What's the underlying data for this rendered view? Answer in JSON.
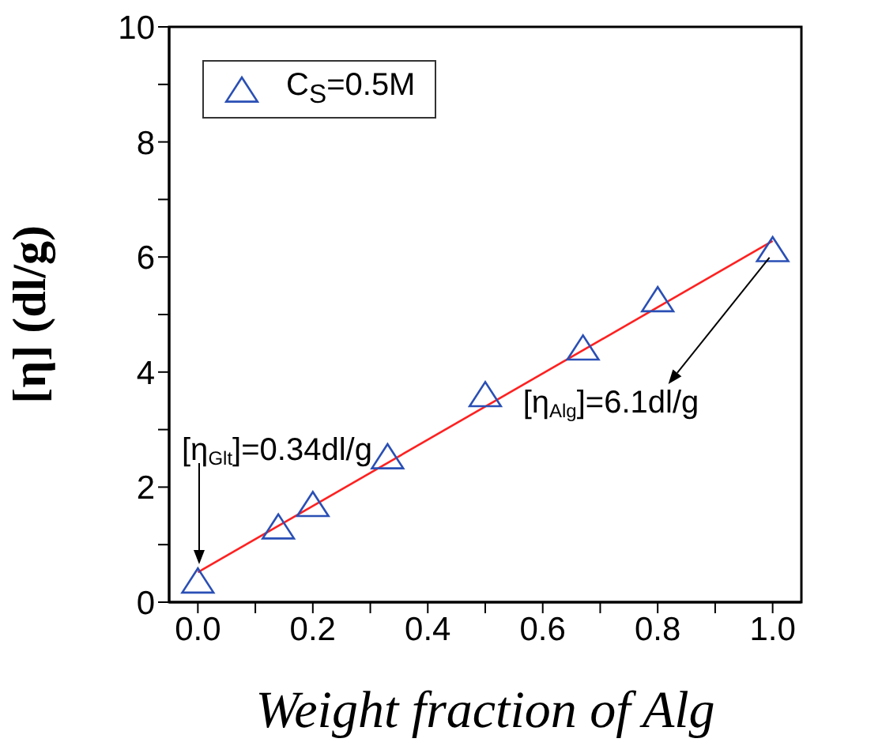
{
  "chart_data": {
    "type": "scatter",
    "xlabel": "Weight fraction of Alg",
    "ylabel": "[η]  (dl/g)",
    "xlim": [
      -0.05,
      1.05
    ],
    "xticks": [
      {
        "value": 0,
        "label": "0.0"
      },
      {
        "value": 0.1,
        "label": null
      },
      {
        "value": 0.2,
        "label": "0.2"
      },
      {
        "value": 0.3,
        "label": null
      },
      {
        "value": 0.4,
        "label": "0.4"
      },
      {
        "value": 0.5,
        "label": null
      },
      {
        "value": 0.6,
        "label": "0.6"
      },
      {
        "value": 0.7,
        "label": null
      },
      {
        "value": 0.8,
        "label": "0.8"
      },
      {
        "value": 0.9,
        "label": null
      },
      {
        "value": 1,
        "label": "1.0"
      }
    ],
    "ylim": [
      0,
      10
    ],
    "yticks": [
      0,
      {
        "value": 1,
        "label": null
      },
      2,
      {
        "value": 3,
        "label": null
      },
      4,
      {
        "value": 5,
        "label": null
      },
      6,
      {
        "value": 7,
        "label": null
      },
      8,
      {
        "value": 9,
        "label": null
      },
      10
    ],
    "legend": "top left",
    "marker": "triangle",
    "series": [
      {
        "name": "C$_{S}$=0.5M",
        "color": "#2a4fb5",
        "x": [
          0,
          0.14,
          0.2,
          0.33,
          0.5,
          0.67,
          0.8,
          1
        ],
        "values": [
          0.34,
          1.28,
          1.67,
          2.5,
          3.58,
          4.39,
          5.23,
          6.1
        ]
      },
      {
        "type": "line",
        "color": "#ff2020",
        "marker": "none",
        "x": [
          0,
          1
        ],
        "values": [
          0.52,
          6.28
        ]
      }
    ],
    "annotations": [
      "[η$_{Glt}$]=0.34dl/g",
      {
        "text": "[η$_{Alg}$]=6.1dl/g",
        "x": 1,
        "y": 6.1
      }
    ]
  }
}
